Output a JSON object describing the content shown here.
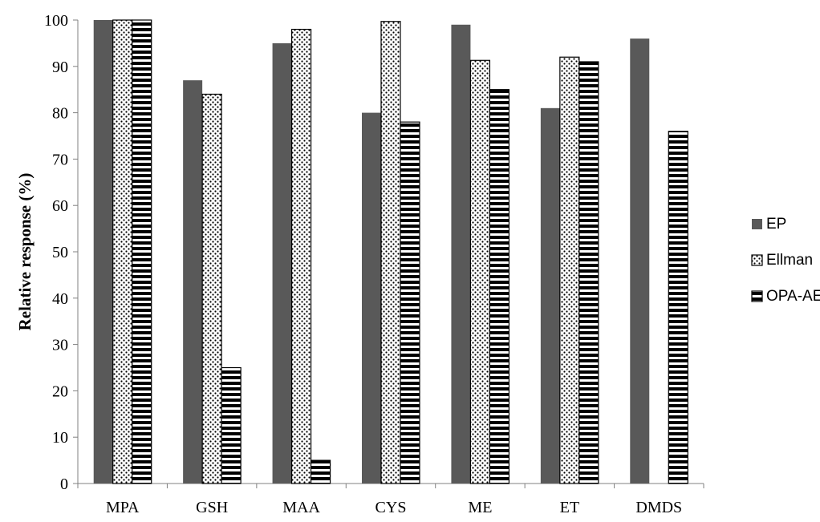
{
  "chart_data": {
    "type": "bar",
    "title": "",
    "xlabel": "",
    "ylabel": "Relative response (%)",
    "ylim": [
      0,
      100
    ],
    "yticks": [
      0,
      10,
      20,
      30,
      40,
      50,
      60,
      70,
      80,
      90,
      100
    ],
    "categories": [
      "MPA",
      "GSH",
      "MAA",
      "CYS",
      "ME",
      "ET",
      "DMDS"
    ],
    "series": [
      {
        "name": "EP",
        "pattern": "solid",
        "color": "#595959",
        "values": [
          100,
          87,
          95,
          80,
          99,
          81,
          96
        ]
      },
      {
        "name": "Ellman",
        "pattern": "dotted",
        "color": "#000000",
        "values": [
          100,
          84,
          98,
          99.7,
          91.3,
          92,
          null
        ]
      },
      {
        "name": "OPA-AE",
        "pattern": "horizontal-stripes",
        "color": "#000000",
        "values": [
          100,
          25,
          5,
          78,
          85,
          91,
          76
        ]
      }
    ],
    "grid": false,
    "legend_position": "right"
  }
}
